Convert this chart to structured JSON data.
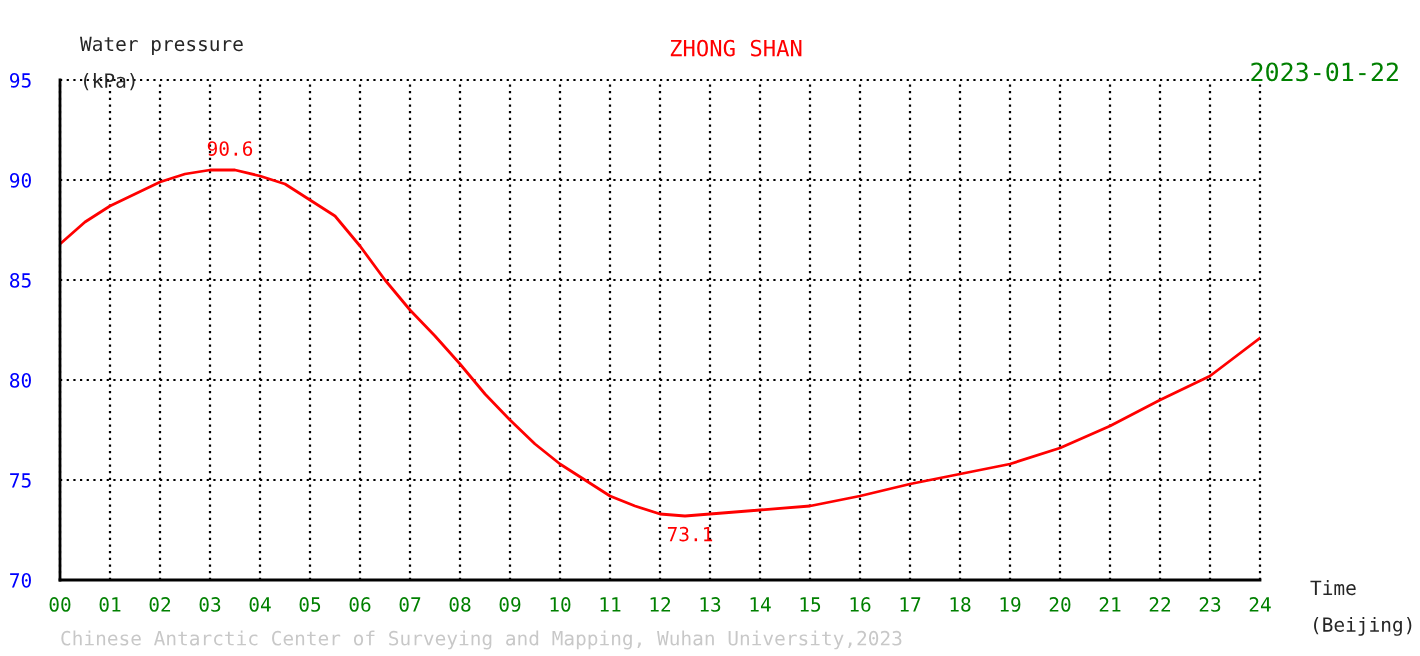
{
  "chart_data": {
    "type": "line",
    "title": "ZHONG SHAN",
    "subtitle": "2023-01-22",
    "ylabel": "Water pressure\n(kPa)",
    "xlabel": "Time\n(Beijing)",
    "x": [
      0,
      0.5,
      1,
      1.5,
      2,
      2.5,
      3,
      3.5,
      4,
      4.5,
      5,
      5.5,
      6,
      6.5,
      7,
      7.5,
      8,
      8.5,
      9,
      9.5,
      10,
      10.5,
      11,
      11.5,
      12,
      12.5,
      13,
      14,
      15,
      16,
      17,
      18,
      19,
      20,
      21,
      22,
      23,
      24
    ],
    "series": [
      {
        "color": "#ff0000",
        "values": [
          86.8,
          87.9,
          88.7,
          89.3,
          89.9,
          90.3,
          90.5,
          90.5,
          90.2,
          89.8,
          89.0,
          88.2,
          86.7,
          85.0,
          83.5,
          82.2,
          80.8,
          79.3,
          78.0,
          76.8,
          75.8,
          75.0,
          74.2,
          73.7,
          73.3,
          73.2,
          73.3,
          73.5,
          73.7,
          74.2,
          74.8,
          75.3,
          75.8,
          76.6,
          77.7,
          79.0,
          80.2,
          82.1
        ]
      }
    ],
    "xlim": [
      0,
      24
    ],
    "ylim": [
      70,
      95
    ],
    "xticks": [
      {
        "value": 0,
        "label": "00"
      },
      {
        "value": 1,
        "label": "01"
      },
      {
        "value": 2,
        "label": "02"
      },
      {
        "value": 3,
        "label": "03"
      },
      {
        "value": 4,
        "label": "04"
      },
      {
        "value": 5,
        "label": "05"
      },
      {
        "value": 6,
        "label": "06"
      },
      {
        "value": 7,
        "label": "07"
      },
      {
        "value": 8,
        "label": "08"
      },
      {
        "value": 9,
        "label": "09"
      },
      {
        "value": 10,
        "label": "10"
      },
      {
        "value": 11,
        "label": "11"
      },
      {
        "value": 12,
        "label": "12"
      },
      {
        "value": 13,
        "label": "13"
      },
      {
        "value": 14,
        "label": "14"
      },
      {
        "value": 15,
        "label": "15"
      },
      {
        "value": 16,
        "label": "16"
      },
      {
        "value": 17,
        "label": "17"
      },
      {
        "value": 18,
        "label": "18"
      },
      {
        "value": 19,
        "label": "19"
      },
      {
        "value": 20,
        "label": "20"
      },
      {
        "value": 21,
        "label": "21"
      },
      {
        "value": 22,
        "label": "22"
      },
      {
        "value": 23,
        "label": "23"
      },
      {
        "value": 24,
        "label": "24"
      }
    ],
    "yticks": [
      70,
      75,
      80,
      85,
      90,
      95
    ],
    "grid": true,
    "legend": false,
    "marker": "none",
    "line_style": "solid",
    "annotations": [
      {
        "text": "90.6",
        "x": 3.4,
        "y": 90.6
      },
      {
        "text": "73.1",
        "x": 12.6,
        "y": 73.1
      },
      "Chinese Antarctic Center of Surveying and Mapping, Wuhan University,2023"
    ]
  }
}
